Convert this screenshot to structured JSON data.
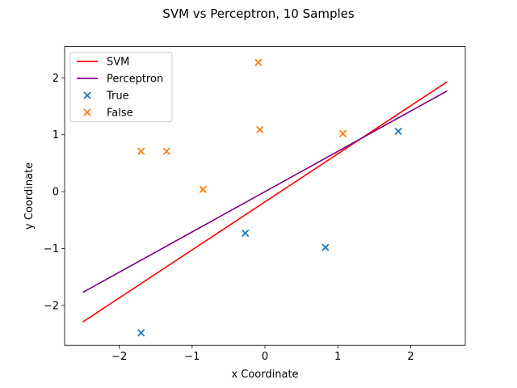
{
  "chart_data": {
    "type": "scatter",
    "title": "SVM vs Perceptron, 10 Samples",
    "xlabel": "x Coordinate",
    "ylabel": "y Coordinate",
    "xlim": [
      -2.75,
      2.75
    ],
    "ylim": [
      -2.7,
      2.55
    ],
    "grid": false,
    "legend_position": "top-left",
    "x_ticks": [
      -2,
      -1,
      0,
      1,
      2
    ],
    "x_tick_labels": [
      "−2",
      "−1",
      "0",
      "1",
      "2"
    ],
    "y_ticks": [
      -2,
      -1,
      0,
      1,
      2
    ],
    "y_tick_labels": [
      "−2",
      "−1",
      "0",
      "1",
      "2"
    ],
    "lines": [
      {
        "name": "SVM",
        "color": "#ff0000",
        "x": [
          -2.5,
          2.5
        ],
        "y": [
          -2.29,
          1.93
        ]
      },
      {
        "name": "Perceptron",
        "color": "#800080",
        "x": [
          -2.5,
          2.5
        ],
        "y": [
          -1.77,
          1.77
        ]
      }
    ],
    "series": [
      {
        "name": "True",
        "color": "#1f77b4",
        "marker": "x",
        "points": [
          [
            -1.7,
            -2.48
          ],
          [
            -0.27,
            -0.73
          ],
          [
            0.83,
            -0.98
          ],
          [
            1.83,
            1.06
          ]
        ]
      },
      {
        "name": "False",
        "color": "#ff7f0e",
        "marker": "x",
        "points": [
          [
            -1.7,
            0.71
          ],
          [
            -1.35,
            0.71
          ],
          [
            -0.85,
            0.04
          ],
          [
            -0.09,
            2.27
          ],
          [
            -0.07,
            1.09
          ],
          [
            1.07,
            1.02
          ]
        ]
      }
    ]
  }
}
